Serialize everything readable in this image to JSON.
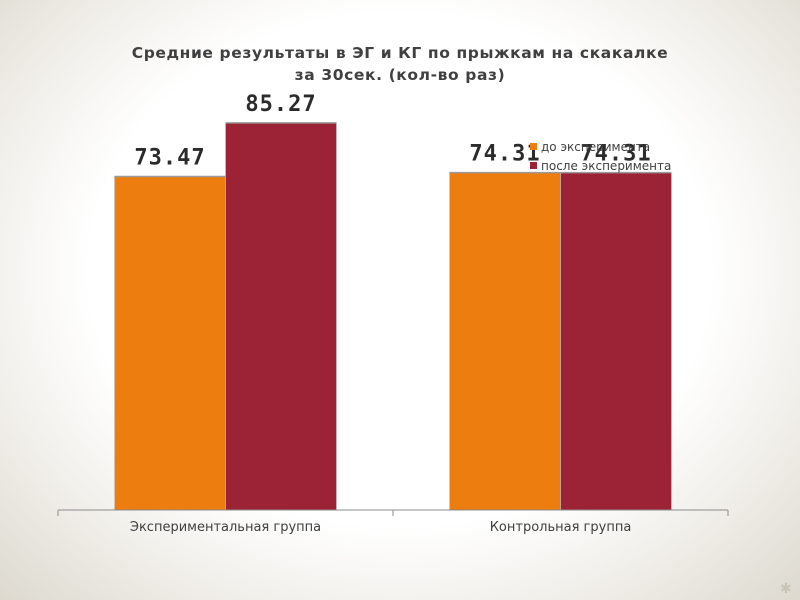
{
  "chart_data": {
    "type": "bar",
    "title_line1": "Средние результаты в ЭГ и КГ по прыжкам на скакалке",
    "title_line2": "за 30сек. (кол-во раз)",
    "categories": [
      "Экспериментальная группа",
      "Контрольная группа"
    ],
    "series": [
      {
        "name": "до эксперимента",
        "color": "#ed7d0e",
        "values": [
          73.47,
          74.31
        ],
        "labels": [
          "73.47",
          "74.31"
        ]
      },
      {
        "name": "после эксперимента",
        "color": "#9b2335",
        "values": [
          85.27,
          74.31
        ],
        "labels": [
          "85.27",
          "74.31"
        ]
      }
    ],
    "ylim": [
      0,
      100
    ],
    "grid": false,
    "legend_position": "top-right"
  }
}
